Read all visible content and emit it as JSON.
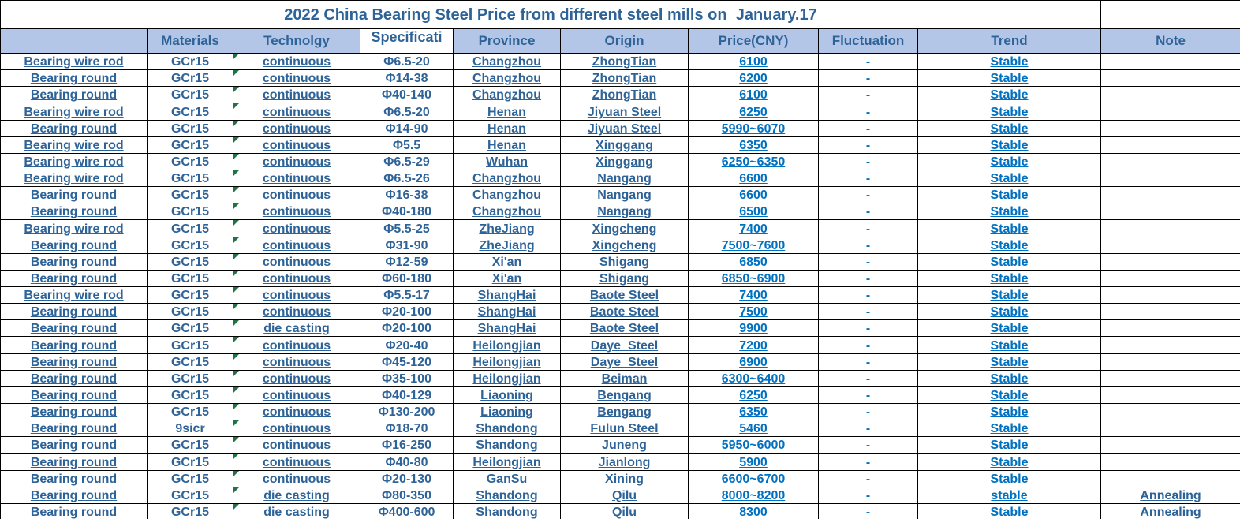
{
  "title": "2022 China Bearing Steel Price from different steel mills on  January.17",
  "columns": [
    "",
    "Materials",
    "Technolgy",
    "Specificati",
    "Province",
    "Origin",
    "Price(CNY)",
    "Fluctuation",
    "Trend",
    "Note"
  ],
  "colors": {
    "dark_text": "#2E6398",
    "bright_text": "#0070C0",
    "header_bg": "#B4C6E7",
    "indicator_green": "#217346",
    "grid_border": "#000000"
  },
  "rows": [
    [
      "Bearing wire rod",
      "GCr15",
      "continuous",
      "Φ6.5-20",
      "Changzhou",
      "ZhongTian",
      "6100",
      "-",
      "Stable",
      ""
    ],
    [
      "Bearing round",
      "GCr15",
      "continuous",
      "Φ14-38",
      "Changzhou",
      "ZhongTian",
      "6200",
      "-",
      "Stable",
      ""
    ],
    [
      "Bearing round",
      "GCr15",
      "continuous",
      "Φ40-140",
      "Changzhou",
      "ZhongTian",
      "6100",
      "-",
      "Stable",
      ""
    ],
    [
      "Bearing wire rod",
      "GCr15",
      "continuous",
      "Φ6.5-20",
      "Henan",
      "Jiyuan Steel",
      "6250",
      "-",
      "Stable",
      ""
    ],
    [
      "Bearing round",
      "GCr15",
      "continuous",
      "Φ14-90",
      "Henan",
      "Jiyuan Steel",
      "5990~6070",
      "-",
      "Stable",
      ""
    ],
    [
      "Bearing wire rod",
      "GCr15",
      "continuous",
      "Φ5.5",
      "Henan",
      "Xinggang",
      "6350",
      "-",
      "Stable",
      ""
    ],
    [
      "Bearing wire rod",
      "GCr15",
      "continuous",
      "Φ6.5-29",
      "Wuhan",
      "Xinggang",
      "6250~6350",
      "-",
      "Stable",
      ""
    ],
    [
      "Bearing wire rod",
      "GCr15",
      "continuous",
      "Φ6.5-26",
      "Changzhou",
      "Nangang",
      "6600",
      "-",
      "Stable",
      ""
    ],
    [
      "Bearing round",
      "GCr15",
      "continuous",
      "Φ16-38",
      "Changzhou",
      "Nangang",
      "6600",
      "-",
      "Stable",
      ""
    ],
    [
      "Bearing round",
      "GCr15",
      "continuous",
      "Φ40-180",
      "Changzhou",
      "Nangang",
      "6500",
      "-",
      "Stable",
      ""
    ],
    [
      "Bearing wire rod",
      "GCr15",
      "continuous",
      "Φ5.5-25",
      "ZheJiang",
      "Xingcheng",
      "7400",
      "-",
      "Stable",
      ""
    ],
    [
      "Bearing round",
      "GCr15",
      "continuous",
      "Φ31-90",
      "ZheJiang",
      "Xingcheng",
      "7500~7600",
      "-",
      "Stable",
      ""
    ],
    [
      "Bearing round",
      "GCr15",
      "continuous",
      "Φ12-59",
      "Xi'an",
      "Shigang",
      "6850",
      "-",
      "Stable",
      ""
    ],
    [
      "Bearing round",
      "GCr15",
      "continuous",
      "Φ60-180",
      "Xi'an",
      "Shigang",
      "6850~6900",
      "-",
      "Stable",
      ""
    ],
    [
      "Bearing wire rod",
      "GCr15",
      "continuous",
      "Φ5.5-17",
      "ShangHai",
      "Baote Steel",
      "7400",
      "-",
      "Stable",
      ""
    ],
    [
      "Bearing round",
      "GCr15",
      "continuous",
      "Φ20-100",
      "ShangHai",
      "Baote Steel",
      "7500",
      "-",
      "Stable",
      ""
    ],
    [
      "Bearing round",
      "GCr15",
      "die casting",
      "Φ20-100",
      "ShangHai",
      "Baote Steel",
      "9900",
      "-",
      "Stable",
      ""
    ],
    [
      "Bearing round",
      "GCr15",
      "continuous",
      "Φ20-40",
      "Heilongjian",
      "Daye  Steel",
      "7200",
      "-",
      "Stable",
      ""
    ],
    [
      "Bearing round",
      "GCr15",
      "continuous",
      "Φ45-120",
      "Heilongjian",
      "Daye  Steel",
      "6900",
      "-",
      "Stable",
      ""
    ],
    [
      "Bearing round",
      "GCr15",
      "continuous",
      "Φ35-100",
      "Heilongjian",
      "Beiman",
      "6300~6400",
      "-",
      "Stable",
      ""
    ],
    [
      "Bearing round",
      "GCr15",
      "continuous",
      "Φ40-129",
      "Liaoning",
      "Bengang",
      "6250",
      "-",
      "Stable",
      ""
    ],
    [
      "Bearing round",
      "GCr15",
      "continuous",
      "Φ130-200",
      "Liaoning",
      "Bengang",
      "6350",
      "-",
      "Stable",
      ""
    ],
    [
      "Bearing round",
      "9sicr",
      "continuous",
      "Φ18-70",
      "Shandong",
      "Fulun Steel",
      "5460",
      "-",
      "Stable",
      ""
    ],
    [
      "Bearing round",
      "GCr15",
      "continuous",
      "Φ16-250",
      "Shandong",
      "Juneng",
      "5950~6000",
      "-",
      "Stable",
      ""
    ],
    [
      "Bearing round",
      "GCr15",
      "continuous",
      "Φ40-80",
      "Heilongjian",
      "Jianlong",
      "5900",
      "-",
      "Stable",
      ""
    ],
    [
      "Bearing round",
      "GCr15",
      "continuous",
      "Φ20-130",
      "GanSu",
      "Xining",
      "6600~6700",
      "-",
      "Stable",
      ""
    ],
    [
      "Bearing round",
      "GCr15",
      "die casting",
      "Φ80-350",
      "Shandong",
      "Qilu",
      "8000~8200",
      "-",
      "stable",
      "Annealing"
    ],
    [
      "Bearing round",
      "GCr15",
      "die casting",
      "Φ400-600",
      "Shandong",
      "Qilu",
      "8300",
      "-",
      "Stable",
      "Annealing"
    ]
  ]
}
